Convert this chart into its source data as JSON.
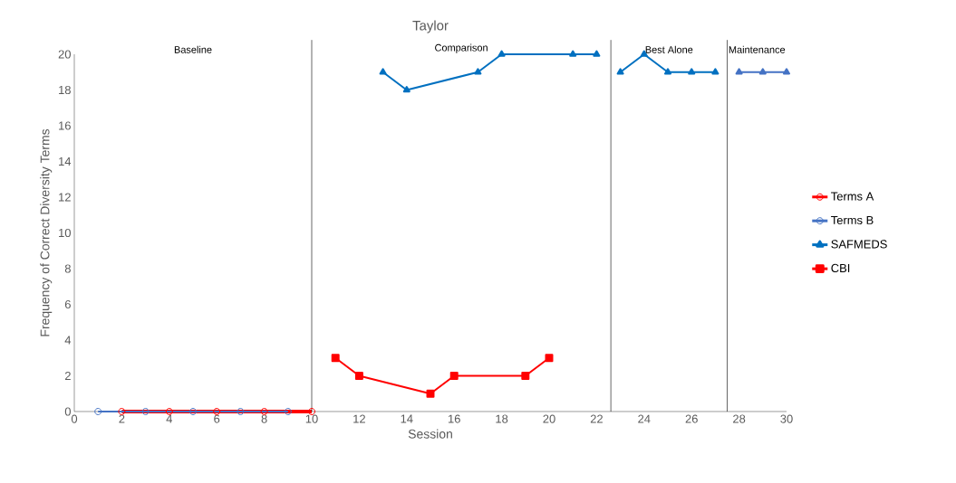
{
  "chart_data": {
    "type": "line",
    "title": "Taylor",
    "xlabel": "Session",
    "ylabel": "Frequency of Correct Diversity Terms",
    "xlim": [
      0,
      30
    ],
    "xticks": [
      0,
      2,
      4,
      6,
      8,
      10,
      12,
      14,
      16,
      18,
      20,
      22,
      24,
      26,
      28,
      30
    ],
    "ylim": [
      0,
      20
    ],
    "yticks": [
      0,
      2,
      4,
      6,
      8,
      10,
      12,
      14,
      16,
      18,
      20
    ],
    "legend": "right",
    "series": [
      {
        "name": "Terms A",
        "color": "#ff0000",
        "marker": "circle",
        "x": [
          2,
          4,
          6,
          8,
          10
        ],
        "values": [
          0,
          0,
          0,
          0,
          0
        ]
      },
      {
        "name": "Terms B",
        "color": "#4472c4",
        "marker": "circle",
        "x": [
          1,
          3,
          5,
          7,
          9
        ],
        "values": [
          0,
          0,
          0,
          0,
          0
        ]
      },
      {
        "name": "SAFMEDS",
        "color": "#0070c0",
        "marker": "triangle",
        "x": [
          13,
          14,
          17,
          18,
          21,
          22,
          22.6,
          23,
          24,
          25,
          26,
          27
        ],
        "values": [
          19,
          18,
          19,
          20,
          20,
          20,
          null,
          19,
          20,
          19,
          19,
          19
        ]
      },
      {
        "name": "CBI",
        "color": "#ff0000",
        "marker": "square",
        "x": [
          11,
          12,
          15,
          16,
          19,
          20
        ],
        "values": [
          3,
          2,
          1,
          2,
          2,
          3
        ]
      },
      {
        "color": "#4472c4",
        "marker": "triangle",
        "x": [
          28,
          29,
          30
        ],
        "values": [
          19,
          19,
          19
        ]
      }
    ],
    "ref_lines": [
      {
        "axis": "x",
        "value": 10
      },
      {
        "axis": "x",
        "value": 22.6
      },
      {
        "axis": "x",
        "value": 27.5
      }
    ],
    "annotations": [
      "Baseline",
      "Comparison",
      "Best Alone",
      "Maintenance"
    ]
  }
}
